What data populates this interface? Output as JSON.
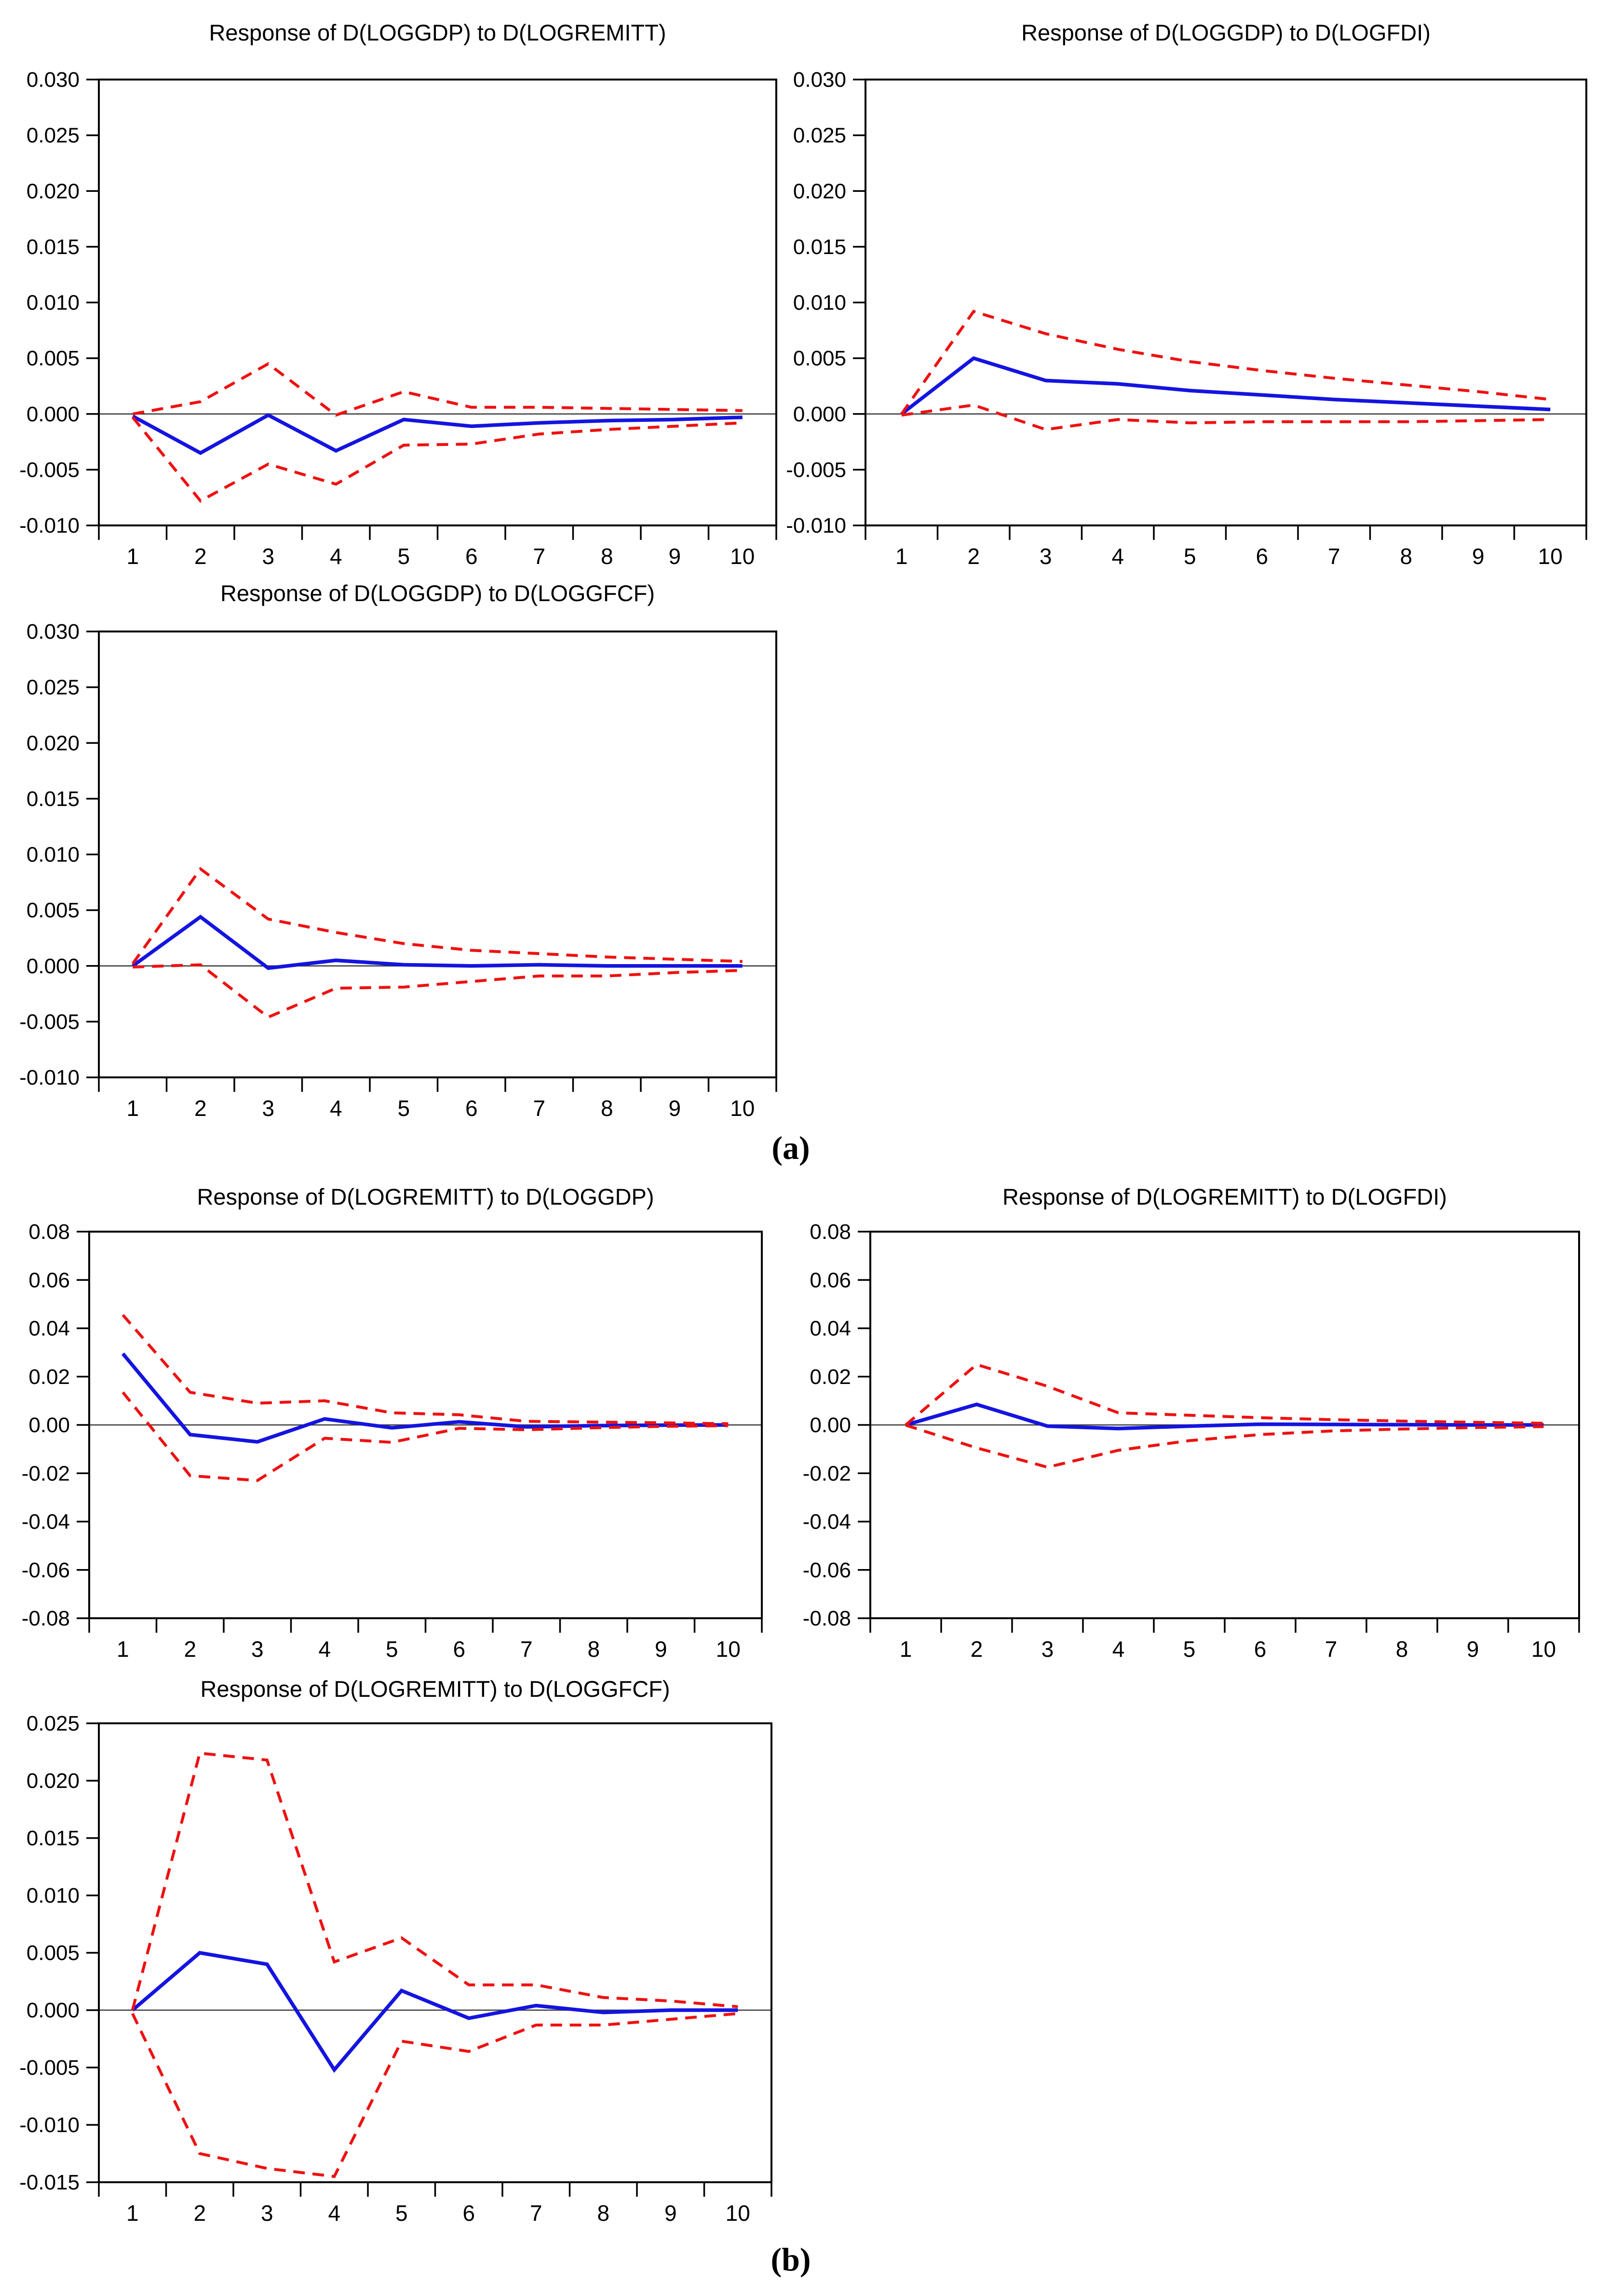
{
  "figure": {
    "panel_a_label": "(a)",
    "panel_b_label": "(b)"
  },
  "colors": {
    "response_line": "#1414e0",
    "confidence_band_line": "#ee1111",
    "zero_line": "#3a3a3a",
    "axis_frame": "#000000",
    "background": "#ffffff"
  },
  "chart_data": [
    {
      "type": "line",
      "panel": "a",
      "title": "Response of D(LOGGDP) to D(LOGREMITT)",
      "x": [
        1,
        2,
        3,
        4,
        5,
        6,
        7,
        8,
        9,
        10
      ],
      "xlabel": "",
      "ylabel": "",
      "ylim": [
        -0.01,
        0.03
      ],
      "ytick_step": 0.005,
      "ytick_labels": [
        "0.030",
        "0.025",
        "0.020",
        "0.015",
        "0.010",
        "0.005",
        "0.000",
        "-0.005",
        "-0.010"
      ],
      "grid": false,
      "legend": "none",
      "series": [
        {
          "name": "response",
          "style": "solid",
          "values": [
            -0.0002,
            -0.0035,
            -0.0001,
            -0.0033,
            -0.0005,
            -0.0011,
            -0.0008,
            -0.0006,
            -0.0005,
            -0.0003
          ]
        },
        {
          "name": "upper-band",
          "style": "dashed",
          "values": [
            0.0,
            0.0011,
            0.0045,
            -0.0001,
            0.002,
            0.0006,
            0.0006,
            0.0005,
            0.0004,
            0.0003
          ]
        },
        {
          "name": "lower-band",
          "style": "dashed",
          "values": [
            -0.0003,
            -0.0078,
            -0.0045,
            -0.0063,
            -0.0028,
            -0.0027,
            -0.0018,
            -0.0014,
            -0.0011,
            -0.0008
          ]
        }
      ]
    },
    {
      "type": "line",
      "panel": "a",
      "title": "Response of D(LOGGDP) to D(LOGFDI)",
      "x": [
        1,
        2,
        3,
        4,
        5,
        6,
        7,
        8,
        9,
        10
      ],
      "xlabel": "",
      "ylabel": "",
      "ylim": [
        -0.01,
        0.03
      ],
      "ytick_step": 0.005,
      "ytick_labels": [
        "0.030",
        "0.025",
        "0.020",
        "0.015",
        "0.010",
        "0.005",
        "0.000",
        "-0.005",
        "-0.010"
      ],
      "grid": false,
      "legend": "none",
      "series": [
        {
          "name": "response",
          "style": "solid",
          "values": [
            0.0,
            0.005,
            0.003,
            0.0027,
            0.0021,
            0.0017,
            0.0013,
            0.001,
            0.0007,
            0.0004
          ]
        },
        {
          "name": "upper-band",
          "style": "dashed",
          "values": [
            0.0,
            0.0092,
            0.0072,
            0.0058,
            0.0047,
            0.0039,
            0.0032,
            0.0026,
            0.002,
            0.0013
          ]
        },
        {
          "name": "lower-band",
          "style": "dashed",
          "values": [
            -0.0001,
            0.0008,
            -0.0014,
            -0.0005,
            -0.0008,
            -0.0007,
            -0.0007,
            -0.0007,
            -0.0006,
            -0.0005
          ]
        }
      ]
    },
    {
      "type": "line",
      "panel": "a",
      "title": "Response of D(LOGGDP) to D(LOGGFCF)",
      "x": [
        1,
        2,
        3,
        4,
        5,
        6,
        7,
        8,
        9,
        10
      ],
      "xlabel": "",
      "ylabel": "",
      "ylim": [
        -0.01,
        0.03
      ],
      "ytick_step": 0.005,
      "ytick_labels": [
        "0.030",
        "0.025",
        "0.020",
        "0.015",
        "0.010",
        "0.005",
        "0.000",
        "-0.005",
        "-0.010"
      ],
      "grid": false,
      "legend": "none",
      "series": [
        {
          "name": "response",
          "style": "solid",
          "values": [
            0.0,
            0.0044,
            -0.0002,
            0.0005,
            0.0001,
            0.0,
            0.0001,
            0.0,
            0.0,
            0.0
          ]
        },
        {
          "name": "upper-band",
          "style": "dashed",
          "values": [
            0.0002,
            0.0087,
            0.0042,
            0.003,
            0.002,
            0.0014,
            0.0011,
            0.0008,
            0.0006,
            0.0004
          ]
        },
        {
          "name": "lower-band",
          "style": "dashed",
          "values": [
            -0.0001,
            0.0001,
            -0.0046,
            -0.002,
            -0.0019,
            -0.0014,
            -0.0009,
            -0.0009,
            -0.0006,
            -0.0004
          ]
        }
      ]
    },
    {
      "type": "line",
      "panel": "b",
      "title": "Response of D(LOGREMITT) to D(LOGGDP)",
      "x": [
        1,
        2,
        3,
        4,
        5,
        6,
        7,
        8,
        9,
        10
      ],
      "xlabel": "",
      "ylabel": "",
      "ylim": [
        -0.08,
        0.08
      ],
      "ytick_step": 0.02,
      "ytick_labels": [
        "0.08",
        "0.06",
        "0.04",
        "0.02",
        "0.00",
        "-0.02",
        "-0.04",
        "-0.06",
        "-0.08"
      ],
      "grid": false,
      "legend": "none",
      "series": [
        {
          "name": "response",
          "style": "solid",
          "values": [
            0.0295,
            -0.004,
            -0.007,
            0.0025,
            -0.0012,
            0.0013,
            -0.0008,
            -0.0003,
            -0.0001,
            0.0
          ]
        },
        {
          "name": "upper-band",
          "style": "dashed",
          "values": [
            0.0455,
            0.0135,
            0.009,
            0.01,
            0.005,
            0.0042,
            0.0015,
            0.0012,
            0.0009,
            0.0005
          ]
        },
        {
          "name": "lower-band",
          "style": "dashed",
          "values": [
            0.0135,
            -0.021,
            -0.023,
            -0.0055,
            -0.0072,
            -0.0014,
            -0.002,
            -0.0012,
            -0.0006,
            -0.0003
          ]
        }
      ]
    },
    {
      "type": "line",
      "panel": "b",
      "title": "Response of D(LOGREMITT) to D(LOGFDI)",
      "x": [
        1,
        2,
        3,
        4,
        5,
        6,
        7,
        8,
        9,
        10
      ],
      "xlabel": "",
      "ylabel": "",
      "ylim": [
        -0.08,
        0.08
      ],
      "ytick_step": 0.02,
      "ytick_labels": [
        "0.08",
        "0.06",
        "0.04",
        "0.02",
        "0.00",
        "-0.02",
        "-0.04",
        "-0.06",
        "-0.08"
      ],
      "grid": false,
      "legend": "none",
      "series": [
        {
          "name": "response",
          "style": "solid",
          "values": [
            0.0,
            0.0085,
            -0.0005,
            -0.0015,
            -0.0005,
            0.0003,
            0.0002,
            0.0001,
            0.0,
            0.0
          ]
        },
        {
          "name": "upper-band",
          "style": "dashed",
          "values": [
            0.0,
            0.025,
            0.016,
            0.005,
            0.004,
            0.003,
            0.0022,
            0.0016,
            0.0011,
            0.0007
          ]
        },
        {
          "name": "lower-band",
          "style": "dashed",
          "values": [
            -0.0001,
            -0.0095,
            -0.0175,
            -0.0105,
            -0.0065,
            -0.004,
            -0.0025,
            -0.0017,
            -0.0011,
            -0.0007
          ]
        }
      ]
    },
    {
      "type": "line",
      "panel": "b",
      "title": "Response of D(LOGREMITT) to D(LOGGFCF)",
      "x": [
        1,
        2,
        3,
        4,
        5,
        6,
        7,
        8,
        9,
        10
      ],
      "xlabel": "",
      "ylabel": "",
      "ylim": [
        -0.015,
        0.025
      ],
      "ytick_step": 0.005,
      "ytick_labels": [
        "0.025",
        "0.020",
        "0.015",
        "0.010",
        "0.005",
        "0.000",
        "-0.005",
        "-0.010",
        "-0.015"
      ],
      "grid": false,
      "legend": "none",
      "series": [
        {
          "name": "response",
          "style": "solid",
          "values": [
            0.0,
            0.005,
            0.004,
            -0.0052,
            0.0017,
            -0.0007,
            0.0004,
            -0.0002,
            0.0,
            0.0
          ]
        },
        {
          "name": "upper-band",
          "style": "dashed",
          "values": [
            0.0,
            0.0224,
            0.0218,
            0.0042,
            0.0063,
            0.0022,
            0.0022,
            0.0011,
            0.0008,
            0.0003
          ]
        },
        {
          "name": "lower-band",
          "style": "dashed",
          "values": [
            -0.0003,
            -0.0125,
            -0.0138,
            -0.0145,
            -0.0027,
            -0.0036,
            -0.0013,
            -0.0013,
            -0.0008,
            -0.0003
          ]
        }
      ]
    }
  ]
}
